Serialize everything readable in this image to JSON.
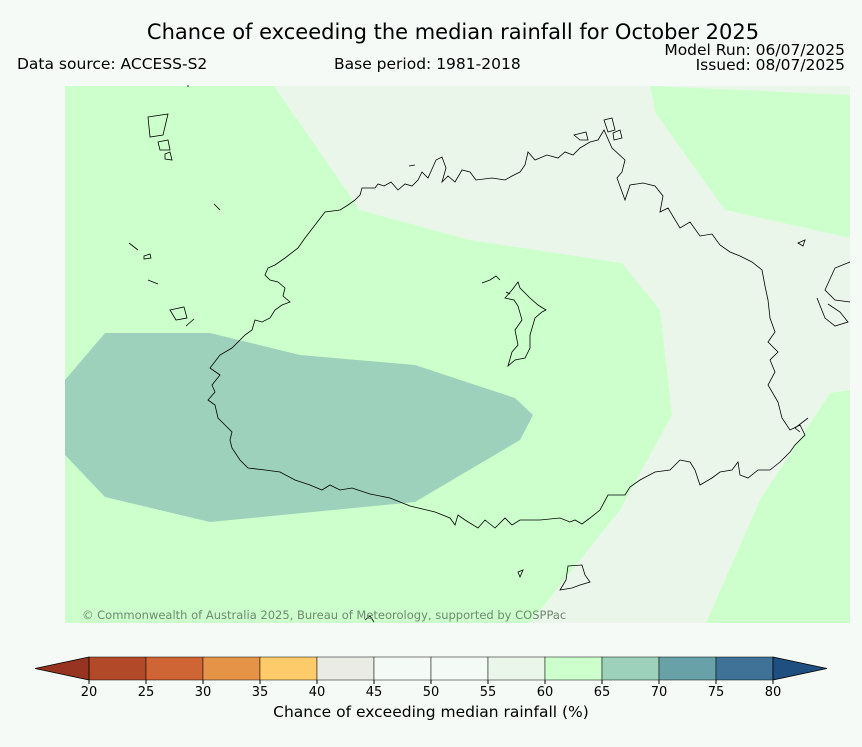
{
  "title": "Chance of exceeding the median rainfall for October 2025",
  "data_source": "Data source: ACCESS-S2",
  "base_period": "Base period: 1981-2018",
  "model_run": "Model Run: 06/07/2025",
  "issued": "Issued: 08/07/2025",
  "copyright": "© Commonwealth of Australia 2025, Bureau of Meteorology, supported by COSPPac",
  "colorbar": {
    "label": "Chance of exceeding median rainfall (%)",
    "ticks": [
      "20",
      "25",
      "30",
      "35",
      "40",
      "45",
      "50",
      "55",
      "60",
      "65",
      "70",
      "75",
      "80"
    ],
    "bins": [
      {
        "range": "20-25",
        "color": "#b24a2a"
      },
      {
        "range": "25-30",
        "color": "#cf6434"
      },
      {
        "range": "30-35",
        "color": "#e59447"
      },
      {
        "range": "35-40",
        "color": "#fdcb69"
      },
      {
        "range": "40-45",
        "color": "#ebebe6"
      },
      {
        "range": "45-50",
        "color": "#f4faf6"
      },
      {
        "range": "50-55",
        "color": "#f4faf6"
      },
      {
        "range": "55-60",
        "color": "#ebf6ea"
      },
      {
        "range": "60-65",
        "color": "#ccffcc"
      },
      {
        "range": "65-70",
        "color": "#9ed1bb"
      },
      {
        "range": "70-75",
        "color": "#68a2a8"
      },
      {
        "range": "75-80",
        "color": "#3f7296"
      }
    ],
    "extend_low_color": "#963321",
    "extend_high_color": "#1e4f80"
  },
  "map_colors": {
    "band_55_60": "#ebf6ea",
    "band_60_65": "#ccffcc",
    "band_65_70": "#9ed1bb",
    "coastline": "#000000"
  }
}
